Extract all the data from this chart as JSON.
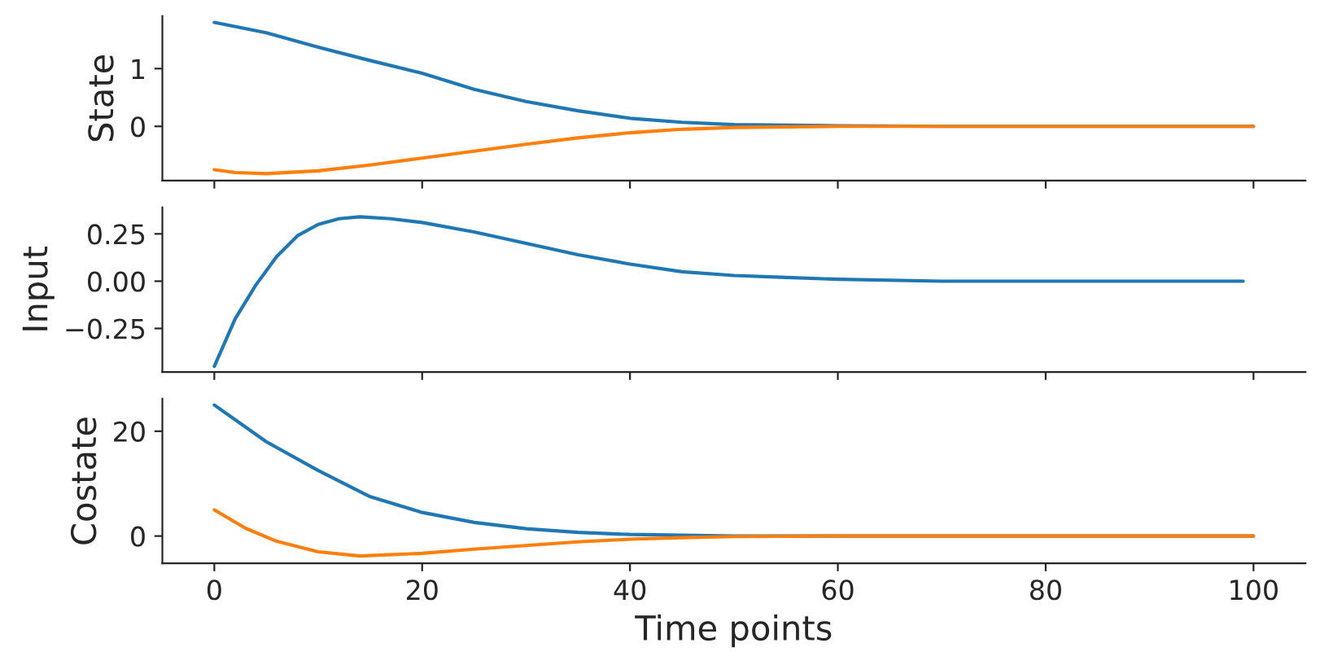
{
  "chart_data": [
    {
      "type": "line",
      "ylabel": "State",
      "xlim": [
        -5,
        105
      ],
      "xticks": [
        0,
        20,
        40,
        60,
        80,
        100
      ],
      "ylim": [
        -0.94,
        1.91
      ],
      "yticks": [
        0,
        1
      ],
      "tick_labels": "y",
      "grid": false,
      "legend": false,
      "series": [
        {
          "color": "#1f77b4",
          "x": [
            0,
            5,
            10,
            15,
            20,
            25,
            30,
            35,
            40,
            45,
            50,
            60,
            70,
            100
          ],
          "values": [
            1.8,
            1.62,
            1.37,
            1.14,
            0.92,
            0.64,
            0.43,
            0.27,
            0.14,
            0.07,
            0.03,
            0.01,
            0,
            0
          ]
        },
        {
          "color": "#ff7f0e",
          "x": [
            0,
            2,
            5,
            10,
            15,
            20,
            25,
            30,
            35,
            40,
            45,
            50,
            60,
            100
          ],
          "values": [
            -0.75,
            -0.8,
            -0.82,
            -0.77,
            -0.67,
            -0.55,
            -0.43,
            -0.31,
            -0.2,
            -0.11,
            -0.05,
            -0.02,
            0,
            0
          ]
        }
      ]
    },
    {
      "type": "line",
      "ylabel": "Input",
      "xlim": [
        -5,
        105
      ],
      "xticks": [
        0,
        20,
        40,
        60,
        80,
        100
      ],
      "ylim": [
        -0.48,
        0.39
      ],
      "yticks": [
        {
          "value": -0.25,
          "label": "−0.25"
        },
        {
          "value": 0,
          "label": "0.00"
        },
        {
          "value": 0.25,
          "label": "0.25"
        }
      ],
      "tick_labels": "y",
      "grid": false,
      "legend": false,
      "series": [
        {
          "color": "#1f77b4",
          "x": [
            0,
            2,
            4,
            6,
            8,
            10,
            12,
            14,
            17,
            20,
            25,
            30,
            35,
            40,
            45,
            50,
            55,
            60,
            70,
            80,
            90,
            99
          ],
          "values": [
            -0.45,
            -0.2,
            -0.02,
            0.13,
            0.24,
            0.3,
            0.33,
            0.34,
            0.33,
            0.31,
            0.26,
            0.2,
            0.14,
            0.09,
            0.05,
            0.03,
            0.02,
            0.01,
            0,
            0,
            0,
            0
          ]
        }
      ]
    },
    {
      "type": "line",
      "ylabel": "Costate",
      "xlabel": "Time points",
      "xlim": [
        -5,
        105
      ],
      "xticks": [
        0,
        20,
        40,
        60,
        80,
        100
      ],
      "ylim": [
        -5.2,
        26.2
      ],
      "yticks": [
        0,
        20
      ],
      "grid": false,
      "legend": false,
      "series": [
        {
          "color": "#1f77b4",
          "x": [
            0,
            5,
            10,
            15,
            20,
            25,
            30,
            35,
            40,
            50,
            60,
            100
          ],
          "values": [
            25,
            18,
            12.5,
            7.5,
            4.5,
            2.6,
            1.4,
            0.7,
            0.3,
            0,
            0,
            0
          ]
        },
        {
          "color": "#ff7f0e",
          "x": [
            0,
            3,
            6,
            10,
            14,
            20,
            25,
            30,
            35,
            40,
            45,
            50,
            60,
            100
          ],
          "values": [
            5,
            1.5,
            -1,
            -3,
            -3.8,
            -3.3,
            -2.5,
            -1.8,
            -1.1,
            -0.6,
            -0.3,
            -0.1,
            0,
            0
          ]
        }
      ]
    }
  ]
}
